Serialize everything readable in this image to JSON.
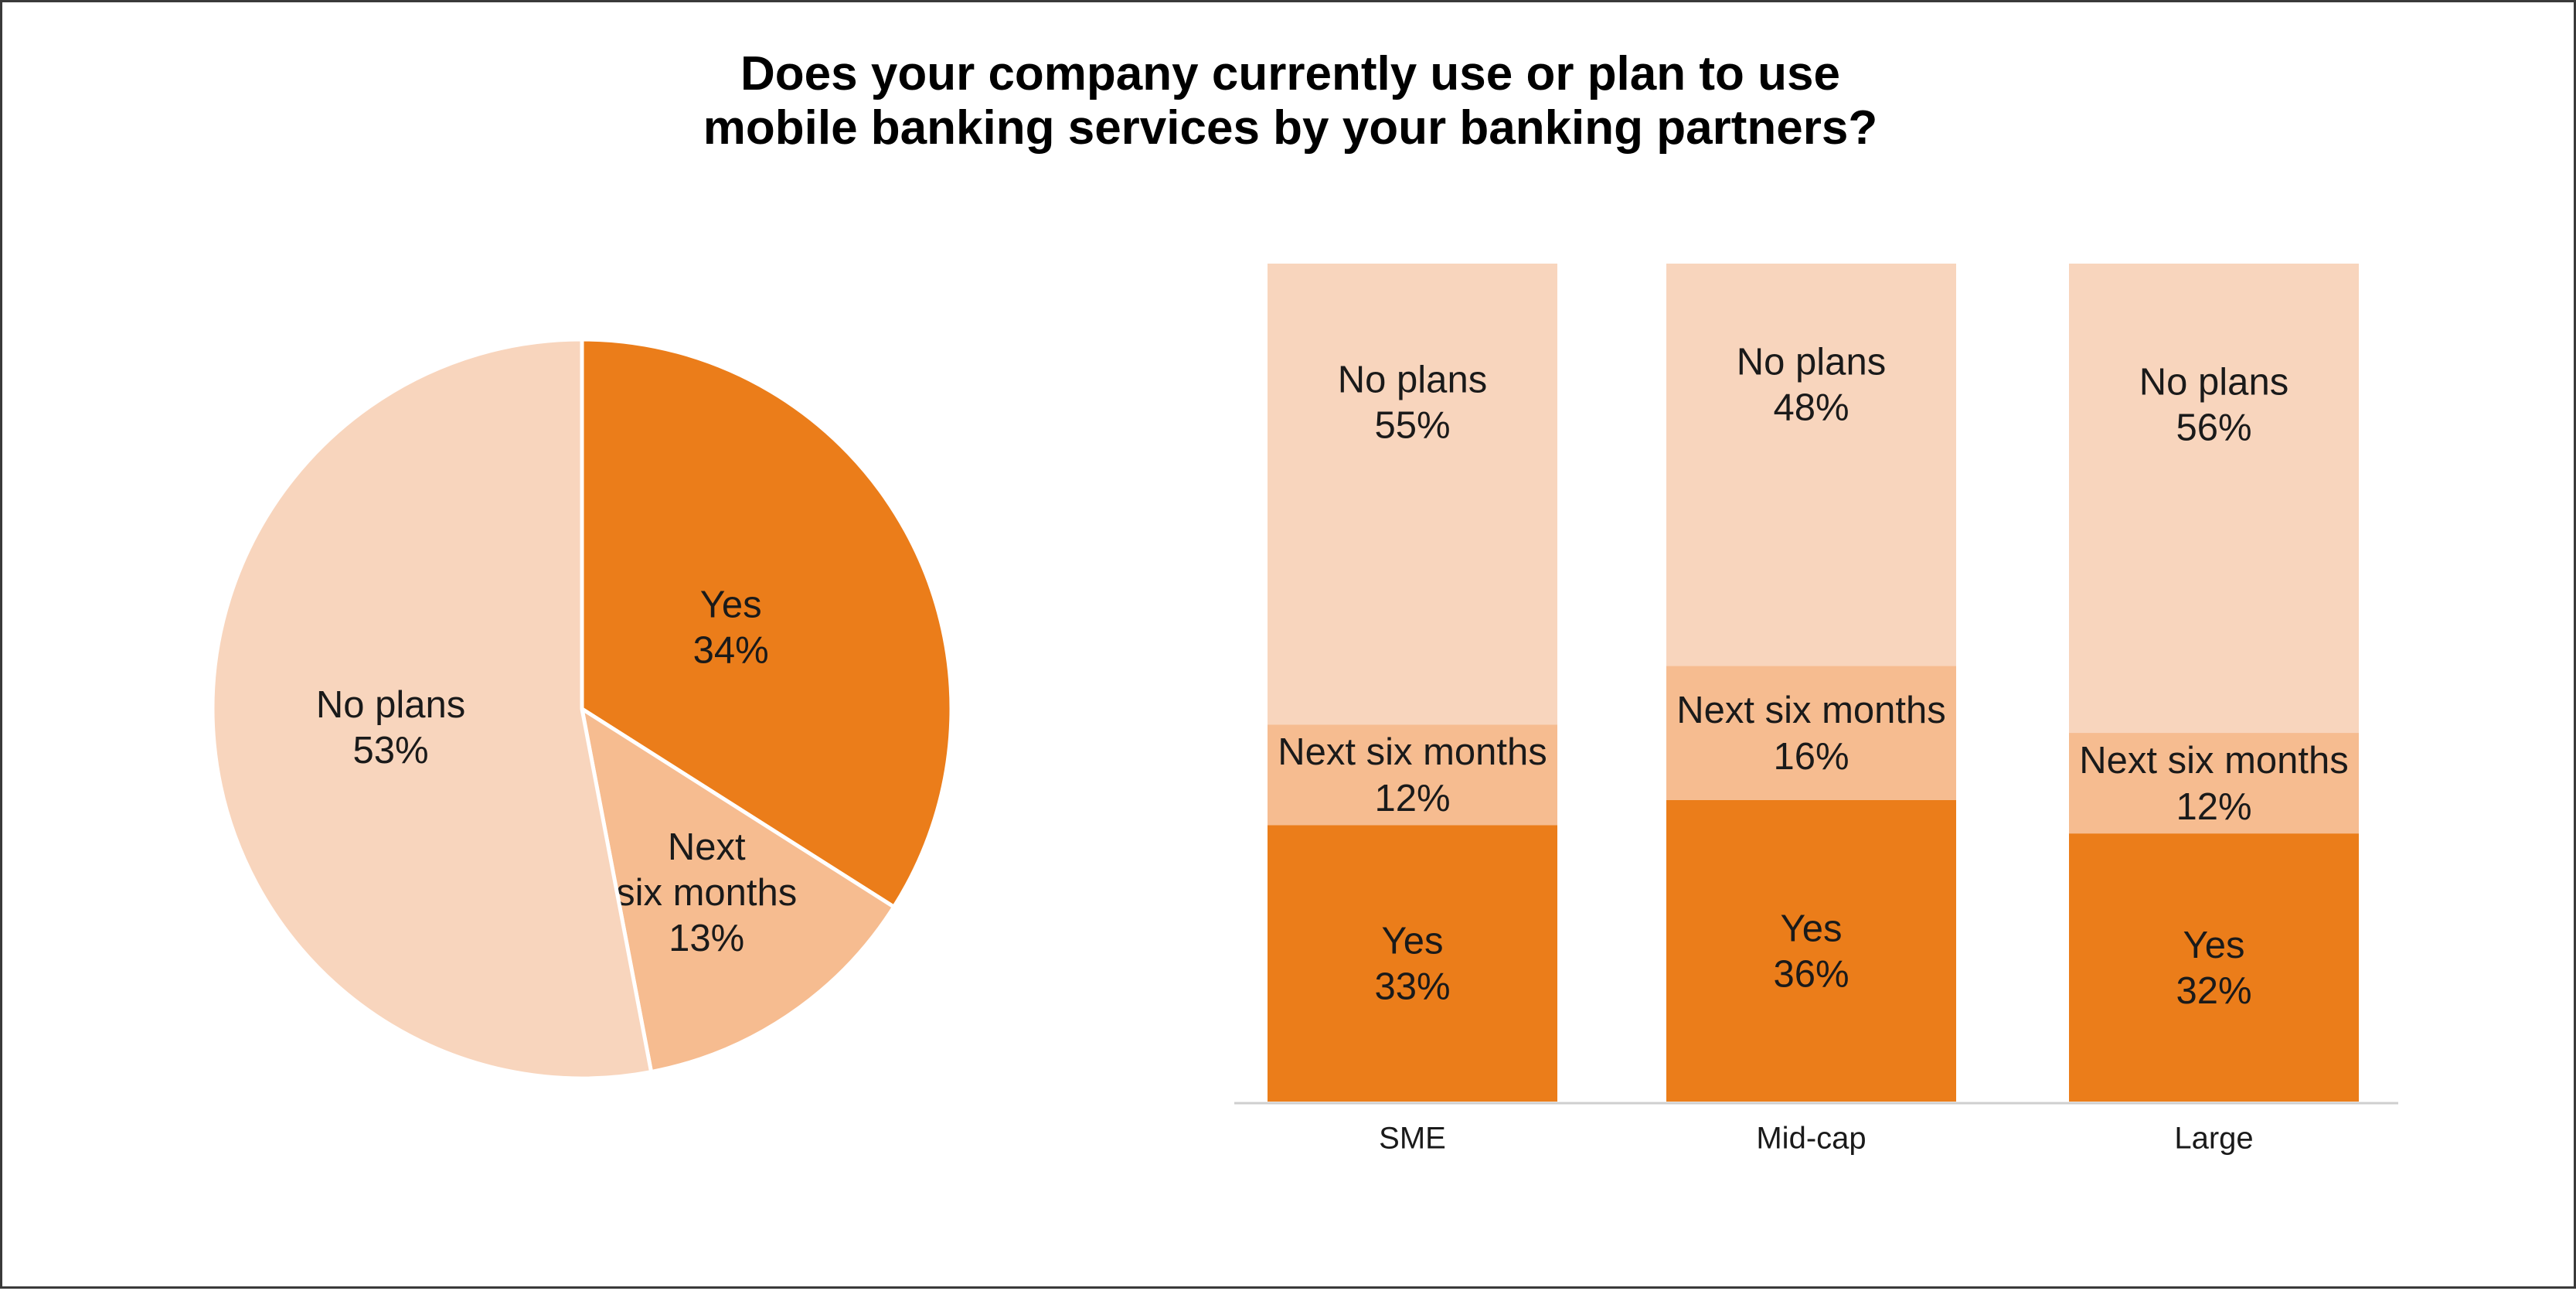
{
  "title": {
    "line1": "Does your company currently use or plan to use",
    "line2": "mobile banking services by your banking partners?"
  },
  "colors": {
    "yes": "#EB7D1A",
    "next_six_months": "#F6BC90",
    "no_plans": "#F8D5BD",
    "axis": "#cfcfcf"
  },
  "chart_data": [
    {
      "type": "pie",
      "slices": [
        {
          "label": "Yes",
          "value": 34,
          "value_label": "34%",
          "label_lines": [
            "Yes"
          ]
        },
        {
          "label": "Next six months",
          "value": 13,
          "value_label": "13%",
          "label_lines": [
            "Next",
            "six months"
          ]
        },
        {
          "label": "No plans",
          "value": 53,
          "value_label": "53%",
          "label_lines": [
            "No plans"
          ]
        }
      ]
    },
    {
      "type": "bar",
      "stacked": true,
      "categories": [
        "SME",
        "Mid-cap",
        "Large"
      ],
      "ylim": [
        0,
        100
      ],
      "series": [
        {
          "name": "Yes",
          "values": [
            33,
            36,
            32
          ],
          "value_labels": [
            "33%",
            "36%",
            "32%"
          ]
        },
        {
          "name": "Next six months",
          "values": [
            12,
            16,
            12
          ],
          "value_labels": [
            "12%",
            "16%",
            "12%"
          ]
        },
        {
          "name": "No plans",
          "values": [
            55,
            48,
            56
          ],
          "value_labels": [
            "55%",
            "48%",
            "56%"
          ]
        }
      ]
    }
  ]
}
